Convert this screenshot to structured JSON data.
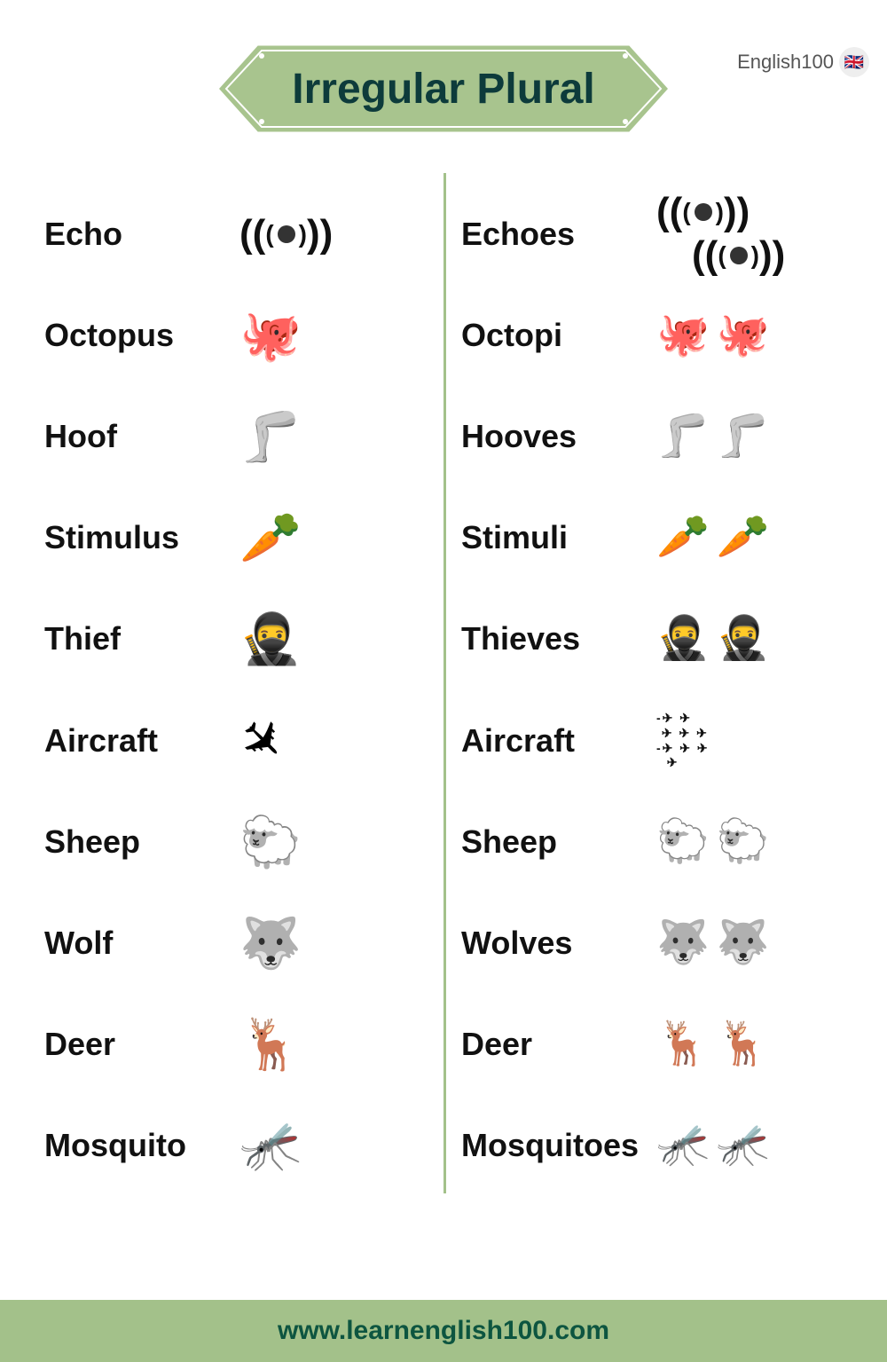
{
  "brand": {
    "text": "English100",
    "logo": "🇬🇧"
  },
  "title": "Irregular Plural",
  "colors": {
    "banner_fill": "#a8c48e",
    "banner_stroke": "#ffffff",
    "title_color": "#0d3b3b",
    "divider_color": "#a3c18a",
    "footer_bg": "#a3c18a",
    "footer_text": "#0d5540",
    "background": "#ffffff",
    "word_color": "#111111"
  },
  "typography": {
    "title_fontsize": 48,
    "word_fontsize": 36,
    "footer_fontsize": 30,
    "brand_fontsize": 22
  },
  "rows": [
    {
      "singular": "Echo",
      "plural": "Echoes",
      "icon_type": "echo"
    },
    {
      "singular": "Octopus",
      "plural": "Octopi",
      "icon_type": "emoji",
      "single_emoji": "🐙",
      "plural_emoji": [
        "🐙",
        "🐙"
      ],
      "plural_tint": [
        "#4a9db8",
        "#f5b8cf"
      ]
    },
    {
      "singular": "Hoof",
      "plural": "Hooves",
      "icon_type": "emoji",
      "single_emoji": "🦵",
      "plural_emoji": [
        "🦵",
        "🦵"
      ],
      "grayscale": true
    },
    {
      "singular": "Stimulus",
      "plural": "Stimuli",
      "icon_type": "emoji",
      "single_emoji": "🥕",
      "plural_emoji": [
        "🥕",
        "🥕"
      ]
    },
    {
      "singular": "Thief",
      "plural": "Thieves",
      "icon_type": "emoji",
      "single_emoji": "🥷",
      "plural_emoji": [
        "🥷",
        "🥷"
      ]
    },
    {
      "singular": "Aircraft",
      "plural": "Aircraft",
      "icon_type": "plane"
    },
    {
      "singular": "Sheep",
      "plural": "Sheep",
      "icon_type": "emoji",
      "single_emoji": "🐑",
      "plural_emoji": [
        "🐑",
        "🐑"
      ]
    },
    {
      "singular": "Wolf",
      "plural": "Wolves",
      "icon_type": "emoji",
      "single_emoji": "🐺",
      "plural_emoji": [
        "🐺",
        "🐺"
      ]
    },
    {
      "singular": "Deer",
      "plural": "Deer",
      "icon_type": "emoji",
      "single_emoji": "🦌",
      "plural_emoji": [
        "🦌",
        "🦌"
      ]
    },
    {
      "singular": "Mosquito",
      "plural": "Mosquitoes",
      "icon_type": "emoji",
      "single_emoji": "🦟",
      "plural_emoji": [
        "🦟",
        "🦟"
      ]
    }
  ],
  "footer": "www.learnenglish100.com"
}
